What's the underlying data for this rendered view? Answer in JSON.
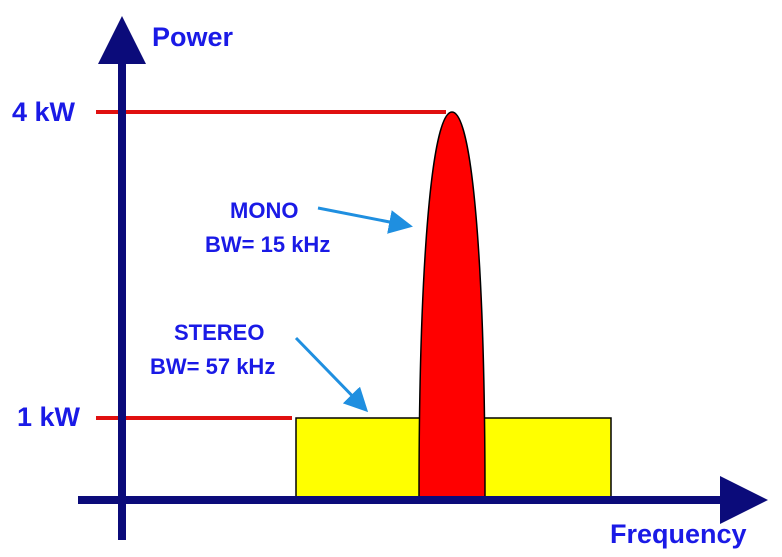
{
  "axes": {
    "y_label": "Power",
    "x_label": "Frequency"
  },
  "levels": {
    "high": "4 kW",
    "low": "1 kW"
  },
  "annotations": {
    "mono": {
      "title": "MONO",
      "bandwidth": "BW= 15 kHz"
    },
    "stereo": {
      "title": "STEREO",
      "bandwidth": "BW= 57 kHz"
    }
  },
  "colors": {
    "axis": "#0b0b7a",
    "level_line": "#e01010",
    "mono_fill": "#ff0000",
    "stereo_fill": "#ffff00",
    "label_text": "#1a1ae6",
    "arrow": "#1f8fe0"
  }
}
